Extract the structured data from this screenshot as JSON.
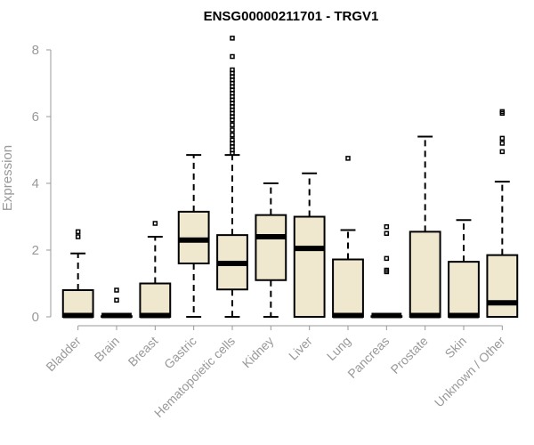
{
  "chart_data": {
    "type": "boxplot",
    "title": "ENSG00000211701 - TRGV1",
    "xlabel": "",
    "ylabel": "Expression",
    "ylim": [
      0,
      8
    ],
    "yticks": [
      0,
      2,
      4,
      6,
      8
    ],
    "colors": {
      "box_fill": "#efe8cf",
      "box_stroke": "#000000",
      "axis": "#999999"
    },
    "categories": [
      "Bladder",
      "Brain",
      "Breast",
      "Gastric",
      "Hematopoietic cells",
      "Kidney",
      "Liver",
      "Lung",
      "Pancreas",
      "Prostate",
      "Skin",
      "Unknown / Other"
    ],
    "boxes": [
      {
        "min": 0,
        "q1": 0,
        "median": 0.02,
        "q3": 0.8,
        "max": 1.9,
        "outliers": [
          2.4,
          2.55
        ]
      },
      {
        "min": 0,
        "q1": 0,
        "median": 0.02,
        "q3": 0.02,
        "max": 0.02,
        "outliers": [
          0.5,
          0.8
        ]
      },
      {
        "min": 0,
        "q1": 0,
        "median": 0.02,
        "q3": 1.0,
        "max": 2.4,
        "outliers": [
          2.8
        ]
      },
      {
        "min": 0,
        "q1": 1.6,
        "median": 2.3,
        "q3": 3.15,
        "max": 4.85,
        "outliers": []
      },
      {
        "min": 0,
        "q1": 0.82,
        "median": 1.6,
        "q3": 2.45,
        "max": 4.85,
        "outliers": [
          4.9,
          5.0,
          5.1,
          5.2,
          5.3,
          5.45,
          5.6,
          5.75,
          5.9,
          6.0,
          6.1,
          6.2,
          6.3,
          6.4,
          6.5,
          6.6,
          6.7,
          6.8,
          6.9,
          7.0,
          7.1,
          7.2,
          7.3,
          7.4,
          7.8,
          8.35
        ]
      },
      {
        "min": 0,
        "q1": 1.1,
        "median": 2.4,
        "q3": 3.05,
        "max": 4.0,
        "outliers": []
      },
      {
        "min": 0,
        "q1": 0,
        "median": 2.05,
        "q3": 3.0,
        "max": 4.3,
        "outliers": []
      },
      {
        "min": 0,
        "q1": 0,
        "median": 0.02,
        "q3": 1.72,
        "max": 2.6,
        "outliers": [
          4.75
        ]
      },
      {
        "min": 0,
        "q1": 0,
        "median": 0.02,
        "q3": 0.02,
        "max": 0.02,
        "outliers": [
          1.35,
          1.4,
          1.75,
          2.5,
          2.7
        ]
      },
      {
        "min": 0,
        "q1": 0,
        "median": 0.02,
        "q3": 2.55,
        "max": 5.4,
        "outliers": []
      },
      {
        "min": 0,
        "q1": 0,
        "median": 0.02,
        "q3": 1.65,
        "max": 2.9,
        "outliers": []
      },
      {
        "min": 0,
        "q1": 0,
        "median": 0.42,
        "q3": 1.85,
        "max": 4.05,
        "outliers": [
          4.95,
          5.2,
          5.35,
          6.1,
          6.15
        ]
      }
    ]
  }
}
